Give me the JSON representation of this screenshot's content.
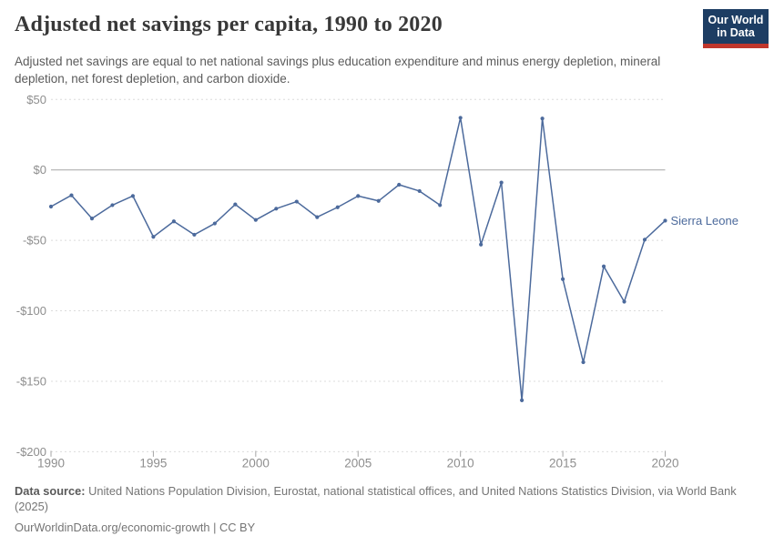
{
  "header": {
    "title": "Adjusted net savings per capita, 1990 to 2020",
    "subtitle": "Adjusted net savings are equal to net national savings plus education expenditure and minus energy depletion, mineral depletion, net forest depletion, and carbon dioxide."
  },
  "logo": {
    "line1": "Our World",
    "line2": "in Data",
    "bg_color": "#1d3d63",
    "stripe_color": "#c0362c"
  },
  "chart_data": {
    "type": "line",
    "title": "Adjusted net savings per capita, 1990 to 2020",
    "xlabel": "",
    "ylabel": "",
    "xlim": [
      1990,
      2020
    ],
    "ylim": [
      -200,
      50
    ],
    "x_ticks": [
      1990,
      1995,
      2000,
      2005,
      2010,
      2015,
      2020
    ],
    "y_ticks": {
      "values": [
        50,
        0,
        -50,
        -100,
        -150,
        -200
      ],
      "labels": [
        "$50",
        "$0",
        "-$50",
        "-$100",
        "-$150",
        "-$200"
      ]
    },
    "grid": "horizontal-dashed",
    "zero_line": true,
    "legend_position": "end-of-line-label",
    "series": [
      {
        "name": "Sierra Leone",
        "color": "#4c6a9c",
        "x": [
          1990,
          1991,
          1992,
          1993,
          1994,
          1995,
          1996,
          1997,
          1998,
          1999,
          2000,
          2001,
          2002,
          2003,
          2004,
          2005,
          2006,
          2007,
          2008,
          2009,
          2010,
          2011,
          2012,
          2013,
          2014,
          2015,
          2016,
          2017,
          2018,
          2019,
          2020
        ],
        "values": [
          -26,
          -18,
          -34.5,
          -25,
          -18.5,
          -47.5,
          -36.5,
          -46,
          -38,
          -24.5,
          -35.5,
          -27.5,
          -22.5,
          -33.5,
          -26.5,
          -18.5,
          -22,
          -10.5,
          -15,
          -25,
          37,
          -53,
          -9,
          -163.5,
          36.5,
          -77.5,
          -136.5,
          -68.5,
          -93.5,
          -49.5,
          -36
        ]
      }
    ],
    "colors": {
      "grid_dashed": "#dcdcdc",
      "zero_line": "#a5a5a5",
      "axis_label": "#8e8e8e",
      "tick_mark": "#a5a5a5"
    }
  },
  "footer": {
    "datasource_label": "Data source:",
    "datasource_text": " United Nations Population Division, Eurostat, national statistical offices, and United Nations Statistics Division, via World Bank (2025)",
    "link_text": "OurWorldinData.org/economic-growth",
    "license_suffix": " | CC BY"
  }
}
